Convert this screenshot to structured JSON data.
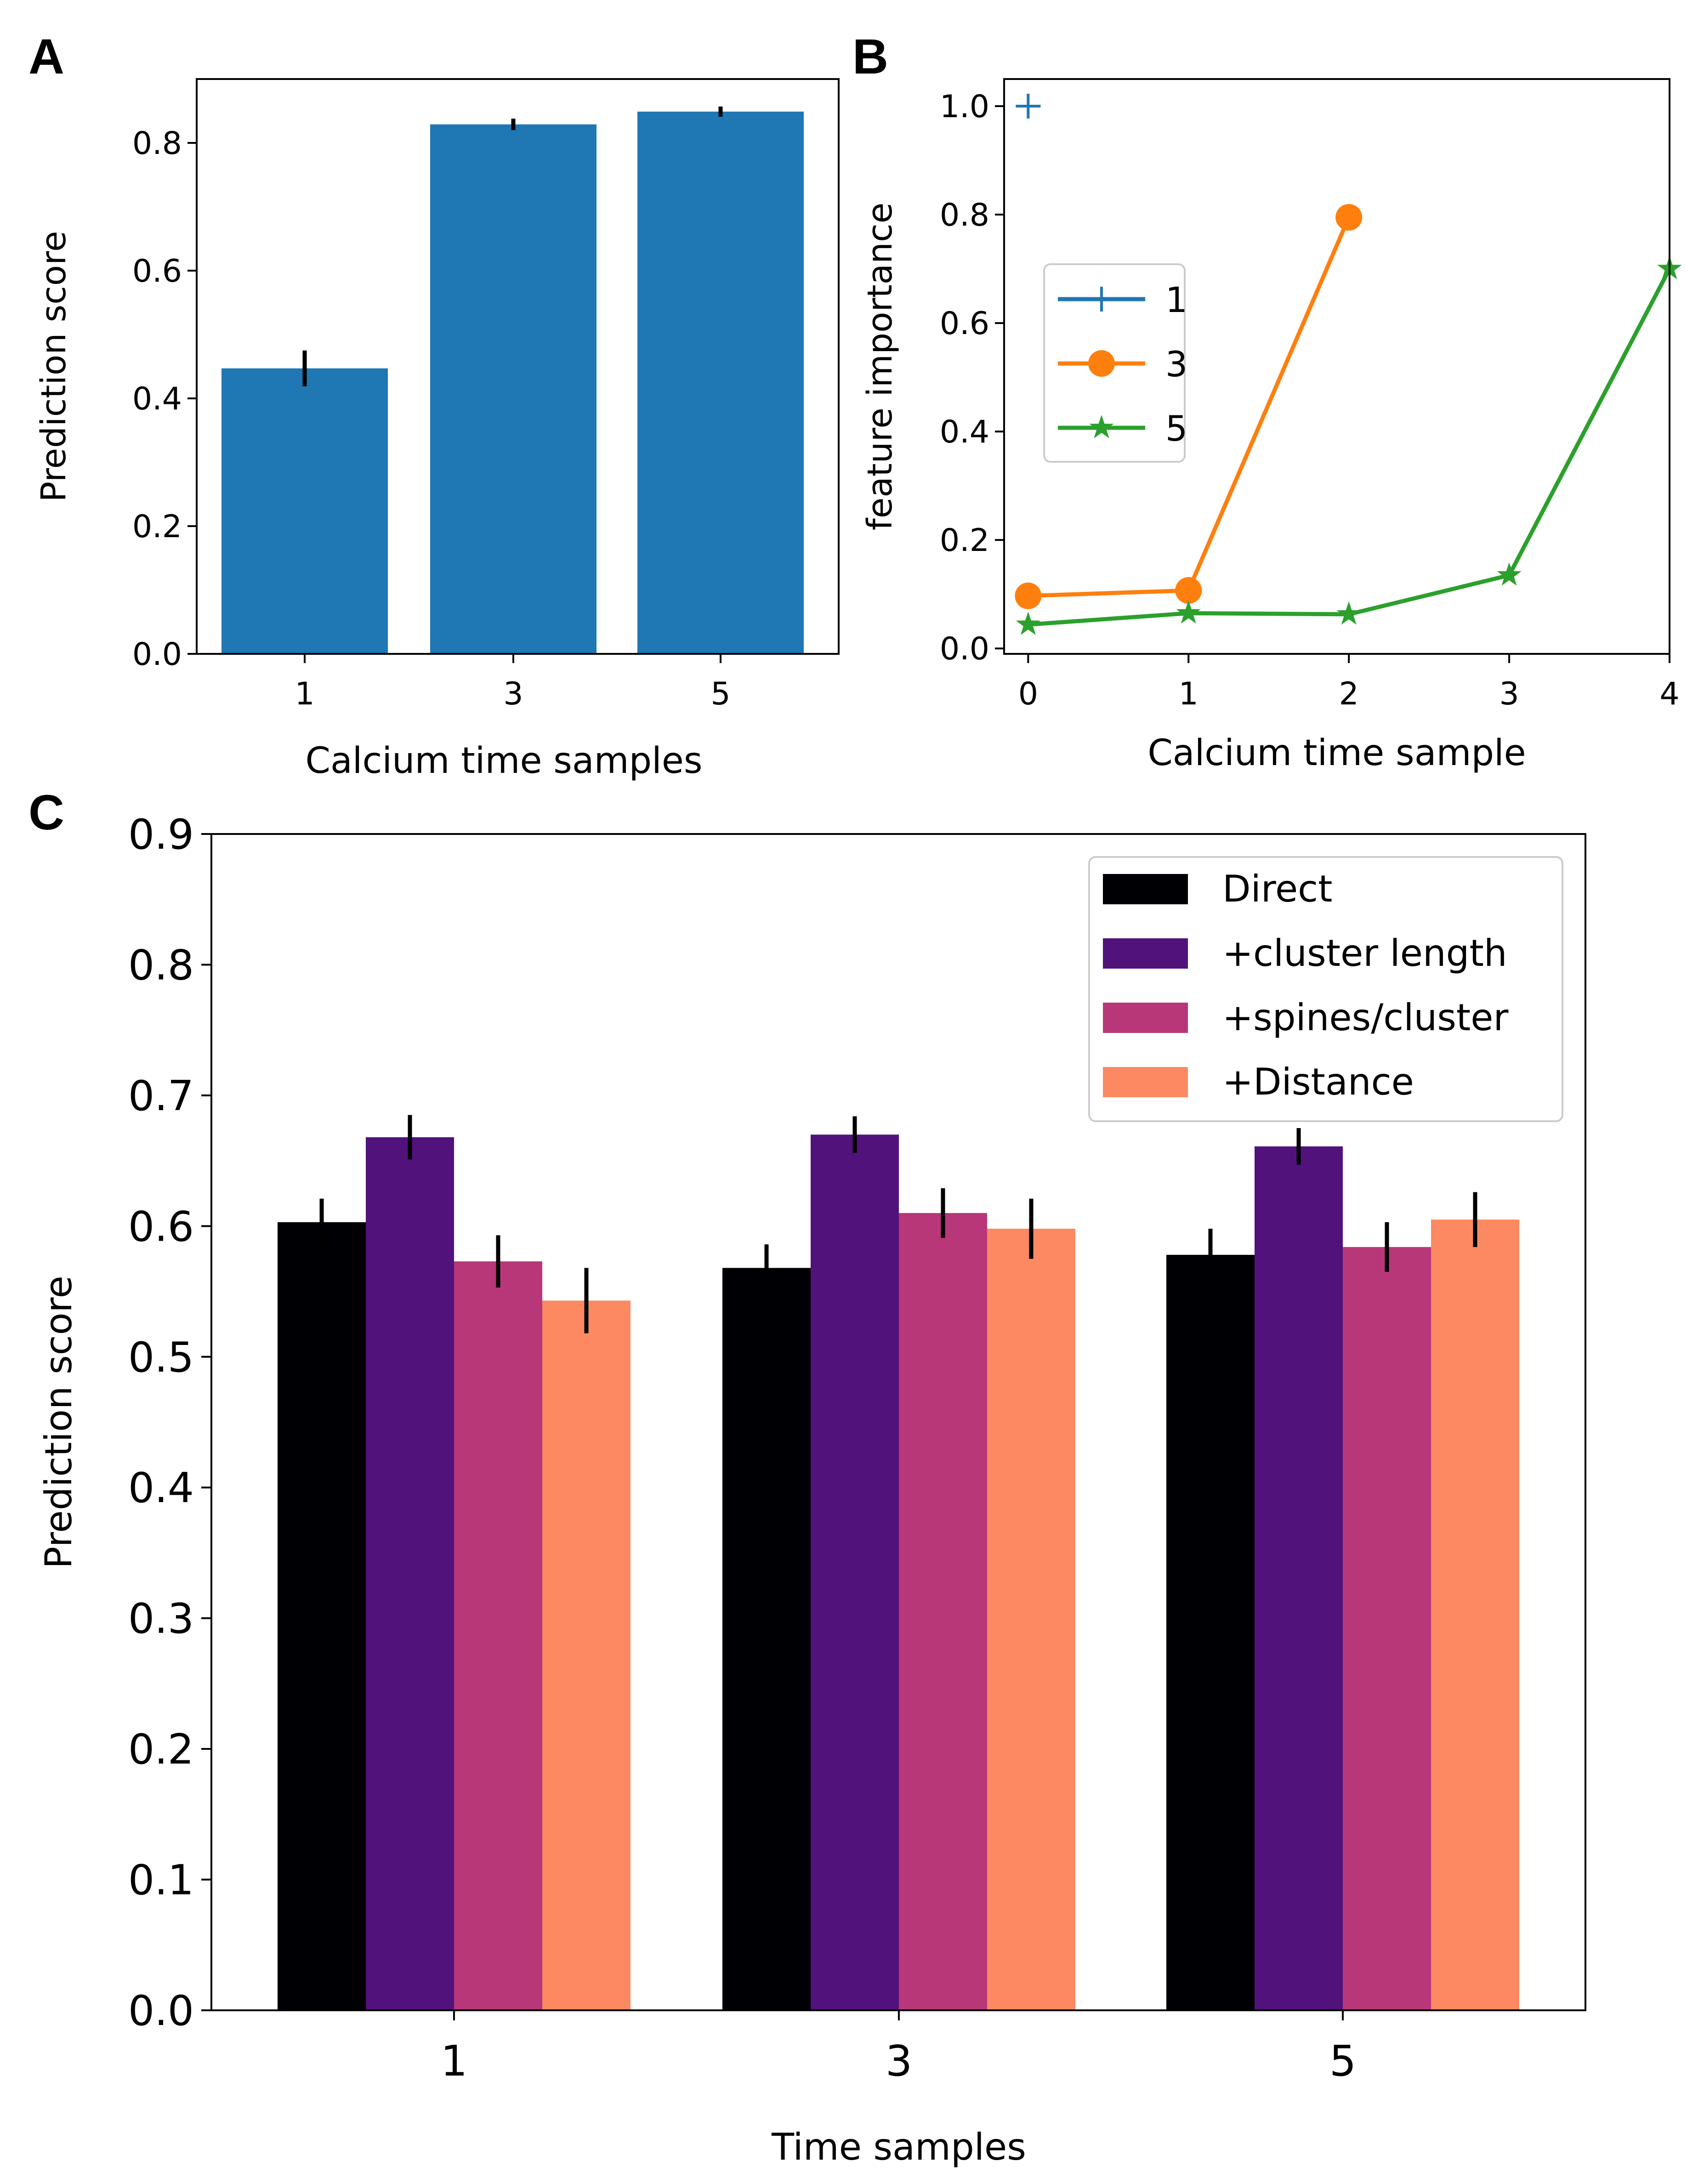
{
  "chart_data": [
    {
      "panel": "A",
      "type": "bar",
      "categories": [
        "1",
        "3",
        "5"
      ],
      "values": [
        0.447,
        0.829,
        0.849
      ],
      "errors": [
        0.028,
        0.009,
        0.008
      ],
      "color": "#1f77b4",
      "xlabel": "Calcium time samples",
      "ylabel": "Prediction score",
      "ylim": [
        0,
        0.9
      ],
      "yticks": [
        "0.0",
        "0.2",
        "0.4",
        "0.6",
        "0.8"
      ]
    },
    {
      "panel": "B",
      "type": "line",
      "xlabel": "Calcium time sample",
      "ylabel": "feature importance",
      "xlim": [
        -0.15,
        4.0
      ],
      "ylim": [
        -0.01,
        1.05
      ],
      "xticks": [
        "0",
        "1",
        "2",
        "3",
        "4"
      ],
      "yticks": [
        "0.0",
        "0.2",
        "0.4",
        "0.6",
        "0.8",
        "1.0"
      ],
      "legend_position": "center-left",
      "series": [
        {
          "name": "1",
          "color": "#1f77b4",
          "marker": "plus",
          "x": [
            0
          ],
          "y": [
            1.0
          ]
        },
        {
          "name": "3",
          "color": "#ff7f0e",
          "marker": "circle",
          "x": [
            0,
            1,
            2
          ],
          "y": [
            0.097,
            0.107,
            0.795
          ]
        },
        {
          "name": "5",
          "color": "#2ca02c",
          "marker": "star",
          "x": [
            0,
            1,
            2,
            3,
            4
          ],
          "y": [
            0.044,
            0.065,
            0.063,
            0.135,
            0.7
          ]
        }
      ]
    },
    {
      "panel": "C",
      "type": "bar",
      "categories": [
        "1",
        "3",
        "5"
      ],
      "xlabel": "Time samples",
      "ylabel": "Prediction score",
      "ylim": [
        0,
        0.9
      ],
      "yticks": [
        "0.0",
        "0.1",
        "0.2",
        "0.3",
        "0.4",
        "0.5",
        "0.6",
        "0.7",
        "0.8",
        "0.9"
      ],
      "legend_position": "top-right",
      "series": [
        {
          "name": "Direct",
          "color": "#000004",
          "values": [
            0.603,
            0.568,
            0.578
          ],
          "errors": [
            0.018,
            0.018,
            0.02
          ]
        },
        {
          "name": "+cluster length",
          "color": "#51127c",
          "values": [
            0.668,
            0.67,
            0.661
          ],
          "errors": [
            0.017,
            0.014,
            0.014
          ]
        },
        {
          "name": "+spines/cluster",
          "color": "#b73779",
          "values": [
            0.573,
            0.61,
            0.584
          ],
          "errors": [
            0.02,
            0.019,
            0.019
          ]
        },
        {
          "name": "+Distance",
          "color": "#fc8961",
          "values": [
            0.543,
            0.598,
            0.605
          ],
          "errors": [
            0.025,
            0.023,
            0.021
          ]
        }
      ]
    }
  ],
  "panel_labels": [
    "A",
    "B",
    "C"
  ]
}
